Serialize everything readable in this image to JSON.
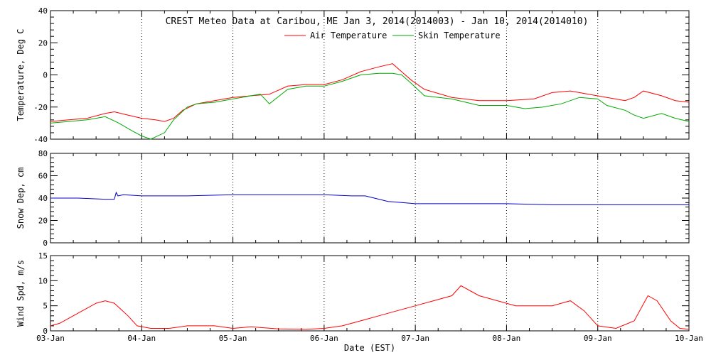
{
  "title": "CREST Meteo Data at Caribou, ME   Jan  3, 2014(2014003) - Jan 10, 2014(2014010)",
  "xlabel": "Date (EST)",
  "x_tick_labels": [
    "03-Jan",
    "04-Jan",
    "05-Jan",
    "06-Jan",
    "07-Jan",
    "08-Jan",
    "09-Jan",
    "10-Jan"
  ],
  "chart_data": [
    {
      "type": "line",
      "ylabel": "Temperature, Deg C",
      "ylim": [
        -40,
        40
      ],
      "y_ticks": [
        -40,
        -20,
        0,
        20,
        40
      ],
      "xlim": [
        0,
        7
      ],
      "grid": "vertical dotted at each day",
      "legend": "top-center",
      "series": [
        {
          "name": "Air Temperature",
          "color": "#ff0000",
          "x": [
            0,
            0.2,
            0.4,
            0.6,
            0.7,
            0.85,
            1.0,
            1.15,
            1.25,
            1.35,
            1.45,
            1.6,
            1.8,
            2.0,
            2.2,
            2.4,
            2.6,
            2.8,
            3.0,
            3.2,
            3.4,
            3.6,
            3.75,
            3.85,
            3.95,
            4.1,
            4.4,
            4.7,
            5.0,
            5.3,
            5.5,
            5.7,
            5.9,
            6.1,
            6.3,
            6.4,
            6.5,
            6.7,
            6.85,
            7.0
          ],
          "y": [
            -29,
            -28,
            -27,
            -24,
            -23,
            -25,
            -27,
            -28,
            -29,
            -27,
            -22,
            -18,
            -16,
            -14,
            -13,
            -12,
            -7,
            -6,
            -6,
            -3,
            2,
            5,
            7,
            2,
            -3,
            -9,
            -14,
            -16,
            -16,
            -15,
            -11,
            -10,
            -12,
            -14,
            -16,
            -14,
            -10,
            -13,
            -16,
            -17
          ]
        },
        {
          "name": "Skin Temperature",
          "color": "#00aa00",
          "x": [
            0,
            0.2,
            0.4,
            0.5,
            0.6,
            0.75,
            0.9,
            1.0,
            1.1,
            1.25,
            1.35,
            1.5,
            1.6,
            1.8,
            2.0,
            2.2,
            2.3,
            2.4,
            2.6,
            2.8,
            3.0,
            3.2,
            3.4,
            3.6,
            3.75,
            3.85,
            3.95,
            4.1,
            4.4,
            4.7,
            5.0,
            5.2,
            5.4,
            5.6,
            5.8,
            6.0,
            6.1,
            6.3,
            6.4,
            6.5,
            6.7,
            6.85,
            7.0
          ],
          "y": [
            -30,
            -29,
            -28,
            -27,
            -26,
            -30,
            -35,
            -38,
            -40,
            -36,
            -28,
            -20,
            -18,
            -17,
            -15,
            -13,
            -12,
            -18,
            -9,
            -7,
            -7,
            -4,
            0,
            1,
            1,
            0,
            -5,
            -13,
            -15,
            -19,
            -19,
            -21,
            -20,
            -18,
            -14,
            -15,
            -19,
            -22,
            -25,
            -27,
            -24,
            -27,
            -29
          ]
        }
      ]
    },
    {
      "type": "line",
      "ylabel": "Snow Dep, cm",
      "ylim": [
        0,
        80
      ],
      "y_ticks": [
        0,
        20,
        40,
        60,
        80
      ],
      "xlim": [
        0,
        7
      ],
      "series": [
        {
          "color": "#0000cc",
          "x": [
            0,
            0.3,
            0.6,
            0.7,
            0.72,
            0.74,
            0.8,
            1.0,
            1.5,
            2.0,
            2.5,
            3.0,
            3.3,
            3.45,
            3.55,
            3.7,
            3.85,
            4.0,
            4.5,
            5.0,
            5.5,
            6.0,
            6.5,
            7.0
          ],
          "y": [
            40,
            40,
            39,
            39,
            45,
            42,
            43,
            42,
            42,
            43,
            43,
            43,
            42,
            42,
            40,
            37,
            36,
            35,
            35,
            35,
            34,
            34,
            34,
            34
          ]
        }
      ]
    },
    {
      "type": "line",
      "ylabel": "Wind Spd, m/s",
      "ylim": [
        0,
        15
      ],
      "y_ticks": [
        0,
        5,
        10,
        15
      ],
      "xlim": [
        0,
        7
      ],
      "series": [
        {
          "color": "#ff0000",
          "x": [
            0,
            0.1,
            0.2,
            0.35,
            0.5,
            0.6,
            0.7,
            0.85,
            0.95,
            1.1,
            1.3,
            1.5,
            1.8,
            2.0,
            2.2,
            2.5,
            2.8,
            3.0,
            3.2,
            3.4,
            3.6,
            3.8,
            4.0,
            4.2,
            4.4,
            4.5,
            4.7,
            4.9,
            5.1,
            5.3,
            5.5,
            5.7,
            5.85,
            6.0,
            6.2,
            6.4,
            6.55,
            6.65,
            6.8,
            6.9,
            7.0
          ],
          "y": [
            1,
            1.5,
            2.5,
            4,
            5.5,
            6,
            5.5,
            3,
            1,
            0.5,
            0.5,
            1,
            1,
            0.5,
            0.8,
            0.4,
            0.3,
            0.5,
            1,
            2,
            3,
            4,
            5,
            6,
            7,
            9,
            7,
            6,
            5,
            5,
            5,
            6,
            4,
            1,
            0.5,
            2,
            7,
            6,
            2,
            0.5,
            0.3
          ]
        }
      ]
    }
  ]
}
